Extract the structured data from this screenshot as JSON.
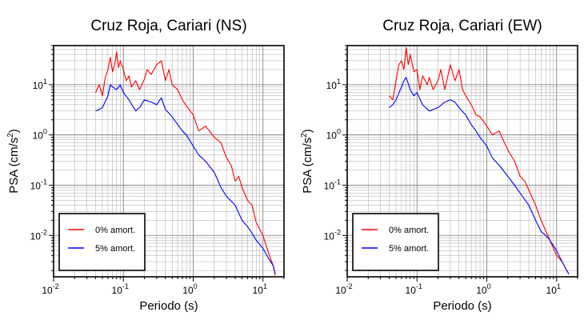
{
  "chart_data": [
    {
      "type": "line",
      "title": "Cruz Roja, Cariari (NS)",
      "xlabel": "Periodo (s)",
      "ylabel": "PSA (cm/s²)",
      "xscale": "log",
      "yscale": "log",
      "xlim": [
        0.01,
        20
      ],
      "ylim": [
        0.0015,
        60
      ],
      "grid": true,
      "legend_position": "bottom-left",
      "x_ticks": [
        {
          "base": "10",
          "exp": "-2"
        },
        {
          "base": "10",
          "exp": "-1"
        },
        {
          "base": "10",
          "exp": "0"
        },
        {
          "base": "10",
          "exp": "1"
        }
      ],
      "y_ticks": [
        {
          "base": "10",
          "exp": "-2"
        },
        {
          "base": "10",
          "exp": "-1"
        },
        {
          "base": "10",
          "exp": "0"
        },
        {
          "base": "10",
          "exp": "1"
        }
      ],
      "series": [
        {
          "name": "0% amort.",
          "color": "#ff0000",
          "x": [
            0.04,
            0.045,
            0.05,
            0.055,
            0.06,
            0.065,
            0.07,
            0.075,
            0.08,
            0.085,
            0.09,
            0.1,
            0.11,
            0.12,
            0.13,
            0.15,
            0.17,
            0.2,
            0.22,
            0.25,
            0.3,
            0.35,
            0.4,
            0.45,
            0.5,
            0.6,
            0.7,
            0.8,
            1.0,
            1.2,
            1.5,
            2.0,
            2.5,
            3.0,
            3.5,
            4.0,
            4.5,
            5.0,
            6.0,
            7.0,
            8.0,
            10.0,
            12.0,
            14.0,
            15.0
          ],
          "y": [
            7,
            10,
            6,
            14,
            20,
            35,
            18,
            25,
            45,
            22,
            30,
            20,
            12,
            15,
            9,
            12,
            8,
            13,
            20,
            16,
            25,
            30,
            12,
            20,
            10,
            8,
            5,
            3.8,
            2.5,
            1.2,
            1.5,
            0.9,
            0.7,
            0.35,
            0.25,
            0.12,
            0.15,
            0.09,
            0.05,
            0.04,
            0.018,
            0.01,
            0.0045,
            0.0025,
            0.0016
          ]
        },
        {
          "name": "5% amort.",
          "color": "#0000ff",
          "x": [
            0.04,
            0.045,
            0.05,
            0.06,
            0.065,
            0.07,
            0.08,
            0.09,
            0.1,
            0.12,
            0.15,
            0.17,
            0.2,
            0.25,
            0.3,
            0.35,
            0.4,
            0.5,
            0.6,
            0.7,
            0.8,
            1.0,
            1.2,
            1.5,
            2.0,
            2.5,
            3.0,
            4.0,
            5.0,
            6.0,
            7.0,
            8.0,
            10.0,
            12.0,
            14.0,
            15.0
          ],
          "y": [
            3,
            3.2,
            3.5,
            6,
            10,
            9,
            8,
            10,
            7,
            5,
            3,
            3.5,
            5,
            4.5,
            4,
            5.5,
            3.2,
            2.3,
            1.6,
            1.2,
            1.0,
            0.6,
            0.4,
            0.3,
            0.18,
            0.09,
            0.06,
            0.04,
            0.02,
            0.015,
            0.011,
            0.008,
            0.0055,
            0.0035,
            0.0025,
            0.0017
          ]
        }
      ]
    },
    {
      "type": "line",
      "title": "Cruz Roja, Cariari (EW)",
      "xlabel": "Periodo (s)",
      "ylabel": "PSA (cm/s²)",
      "xscale": "log",
      "yscale": "log",
      "xlim": [
        0.01,
        20
      ],
      "ylim": [
        0.0015,
        60
      ],
      "grid": true,
      "legend_position": "bottom-left",
      "x_ticks": [
        {
          "base": "10",
          "exp": "-2"
        },
        {
          "base": "10",
          "exp": "-1"
        },
        {
          "base": "10",
          "exp": "0"
        },
        {
          "base": "10",
          "exp": "1"
        }
      ],
      "y_ticks": [
        {
          "base": "10",
          "exp": "-2"
        },
        {
          "base": "10",
          "exp": "-1"
        },
        {
          "base": "10",
          "exp": "0"
        },
        {
          "base": "10",
          "exp": "1"
        }
      ],
      "series": [
        {
          "name": "0% amort.",
          "color": "#ff0000",
          "x": [
            0.04,
            0.045,
            0.05,
            0.055,
            0.06,
            0.065,
            0.07,
            0.075,
            0.08,
            0.09,
            0.1,
            0.11,
            0.12,
            0.14,
            0.15,
            0.17,
            0.2,
            0.22,
            0.25,
            0.3,
            0.35,
            0.4,
            0.45,
            0.5,
            0.6,
            0.7,
            0.8,
            1.0,
            1.2,
            1.5,
            2.0,
            2.5,
            3.0,
            3.5,
            4.0,
            5.0,
            6.0,
            8.0,
            10.0,
            12.0,
            14.0,
            15.0
          ],
          "y": [
            6,
            5,
            12,
            25,
            30,
            20,
            55,
            25,
            40,
            18,
            20,
            8,
            15,
            10,
            14,
            8,
            12,
            20,
            8,
            25,
            12,
            20,
            8,
            6,
            4,
            2.5,
            2.3,
            1.5,
            1.0,
            1.2,
            0.5,
            0.3,
            0.15,
            0.12,
            0.08,
            0.04,
            0.02,
            0.008,
            0.004,
            0.003,
            0.002,
            0.0017
          ]
        },
        {
          "name": "5% amort.",
          "color": "#0000ff",
          "x": [
            0.04,
            0.045,
            0.05,
            0.06,
            0.065,
            0.07,
            0.08,
            0.09,
            0.1,
            0.12,
            0.15,
            0.2,
            0.25,
            0.3,
            0.35,
            0.4,
            0.5,
            0.6,
            0.7,
            0.8,
            1.0,
            1.2,
            1.5,
            2.0,
            2.5,
            3.0,
            4.0,
            5.0,
            6.0,
            7.0,
            8.0,
            10.0,
            12.0,
            14.0,
            15.0
          ],
          "y": [
            3.5,
            4,
            5,
            9,
            12,
            14,
            8,
            6,
            7,
            4,
            3,
            3.5,
            4.5,
            5,
            4.5,
            3.5,
            2.5,
            1.6,
            1.2,
            0.9,
            0.6,
            0.35,
            0.25,
            0.15,
            0.1,
            0.07,
            0.04,
            0.02,
            0.012,
            0.01,
            0.008,
            0.005,
            0.003,
            0.002,
            0.0017
          ]
        }
      ]
    }
  ]
}
